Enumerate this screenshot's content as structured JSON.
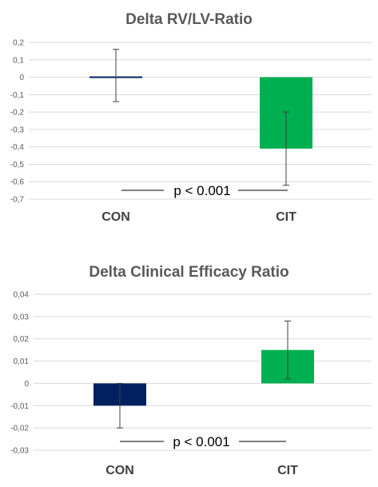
{
  "chart_data": [
    {
      "type": "bar",
      "title": "Delta RV/LV-Ratio",
      "categories": [
        "CON",
        "CIT"
      ],
      "values": [
        0.005,
        -0.41
      ],
      "error_low": [
        -0.14,
        -0.62
      ],
      "error_high": [
        0.16,
        -0.2
      ],
      "ylim": [
        -0.7,
        0.2
      ],
      "yticks": [
        0.2,
        0.1,
        0,
        -0.1,
        -0.2,
        -0.3,
        -0.4,
        -0.5,
        -0.6,
        -0.7
      ],
      "ytick_labels": [
        "0,2",
        "0,1",
        "0",
        "-0,1",
        "-0,2",
        "-0,3",
        "-0,4",
        "-0,5",
        "-0,6",
        "-0,7"
      ],
      "colors": [
        "#002060",
        "#00b050"
      ],
      "grid": true,
      "annotation": "p < 0.001",
      "annotation_y": -0.65
    },
    {
      "type": "bar",
      "title": "Delta Clinical  Efficacy Ratio",
      "categories": [
        "CON",
        "CIT"
      ],
      "values": [
        -0.01,
        0.015
      ],
      "error_low": [
        -0.02,
        0.002
      ],
      "error_high": [
        0.0,
        0.028
      ],
      "ylim": [
        -0.03,
        0.04
      ],
      "yticks": [
        0.04,
        0.03,
        0.02,
        0.01,
        0,
        -0.01,
        -0.02,
        -0.03
      ],
      "ytick_labels": [
        "0,04",
        "0,03",
        "0,02",
        "0,01",
        "0",
        "-0,01",
        "-0,02",
        "-0,03"
      ],
      "colors": [
        "#002060",
        "#00b050"
      ],
      "grid": true,
      "annotation": "p < 0.001",
      "annotation_y": -0.0265
    }
  ]
}
